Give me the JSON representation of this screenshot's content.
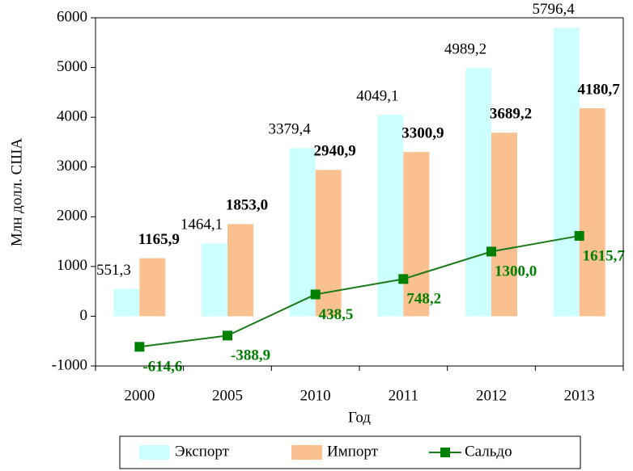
{
  "chart_data": {
    "type": "bar",
    "categories": [
      "2000",
      "2005",
      "2010",
      "2011",
      "2012",
      "2013"
    ],
    "series": [
      {
        "name": "Экспорт",
        "color": "#ccffff",
        "values": [
          551.3,
          1464.1,
          3379.4,
          4049.1,
          4989.2,
          5796.4
        ],
        "value_labels": [
          "551,3",
          "1464,1",
          "3379,4",
          "4049,1",
          "4989,2",
          "5796,4"
        ]
      },
      {
        "name": "Импорт",
        "color": "#fac090",
        "values": [
          1165.9,
          1853.0,
          2940.9,
          3300.9,
          3689.2,
          4180.7
        ],
        "value_labels": [
          "1165,9",
          "1853,0",
          "2940,9",
          "3300,9",
          "3689,2",
          "4180,7"
        ]
      },
      {
        "name": "Сальдо",
        "type": "line",
        "color": "#1a7a1a",
        "values": [
          -614.6,
          -388.9,
          438.5,
          748.2,
          1300.0,
          1615.7
        ],
        "value_labels": [
          "-614,6",
          "-388,9",
          "438,5",
          "748,2",
          "1300,0",
          "1615,7"
        ]
      }
    ],
    "ylabel": "Млн долл. США",
    "xlabel": "Год",
    "ylim": [
      -1000,
      6000
    ],
    "yticks": [
      -1000,
      0,
      1000,
      2000,
      3000,
      4000,
      5000,
      6000
    ],
    "grid": false,
    "legend": "bottom"
  }
}
